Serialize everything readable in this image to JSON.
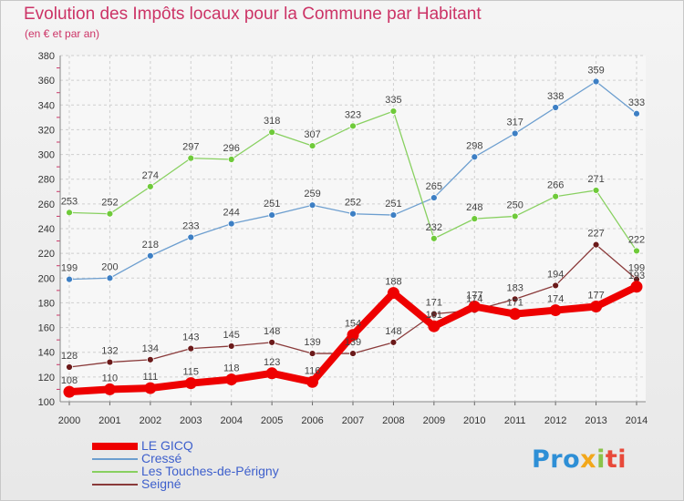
{
  "title": "Evolution des Impôts locaux pour la Commune par Habitant",
  "subtitle": "(en € et par an)",
  "logo_text": "Proxiti",
  "chart_data": {
    "type": "line",
    "x": [
      "2000",
      "2001",
      "2002",
      "2003",
      "2004",
      "2005",
      "2006",
      "2007",
      "2008",
      "2009",
      "2010",
      "2011",
      "2012",
      "2013",
      "2014"
    ],
    "ylim": [
      100,
      380
    ],
    "yticks": [
      100,
      120,
      140,
      160,
      180,
      200,
      220,
      240,
      260,
      280,
      300,
      320,
      340,
      360,
      380
    ],
    "grid": true,
    "legend_position": "bottom-left",
    "series": [
      {
        "name": "LE GICQ",
        "color": "#ee0000",
        "point_color": "#ee0000",
        "width": 8,
        "values": [
          108,
          110,
          111,
          115,
          118,
          123,
          116,
          154,
          188,
          161,
          177,
          171,
          174,
          177,
          193
        ]
      },
      {
        "name": "Cressé",
        "color": "#6c9ecf",
        "point_color": "#3d7fc4",
        "width": 1.3,
        "values": [
          199,
          200,
          218,
          233,
          244,
          251,
          259,
          252,
          251,
          265,
          298,
          317,
          338,
          359,
          333
        ]
      },
      {
        "name": "Les Touches-de-Périgny",
        "color": "#88d060",
        "point_color": "#6fca3a",
        "width": 1.3,
        "values": [
          253,
          252,
          274,
          297,
          296,
          318,
          307,
          323,
          335,
          232,
          248,
          250,
          266,
          271,
          222
        ]
      },
      {
        "name": "Seigné",
        "color": "#8a3a3a",
        "point_color": "#6b1a1a",
        "width": 1.3,
        "values": [
          128,
          132,
          134,
          143,
          145,
          148,
          139,
          139,
          148,
          171,
          174,
          183,
          194,
          227,
          199
        ]
      }
    ]
  }
}
